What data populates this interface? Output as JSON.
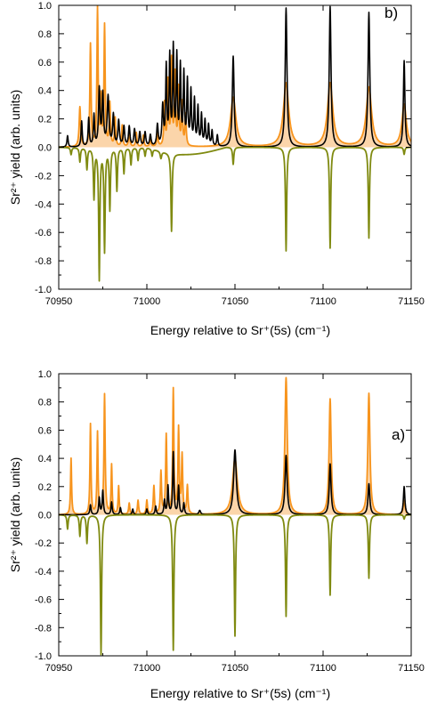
{
  "chart_data": [
    {
      "type": "line",
      "panel_label": "b)",
      "xlabel": "Energy relative to Sr⁺(5s)  (cm⁻¹)",
      "ylabel": "Sr²⁺ yield (arb. units)",
      "xlim": [
        70950,
        71150
      ],
      "ylim": [
        -1.0,
        1.0
      ],
      "xticks": [
        70950,
        71000,
        71050,
        71100,
        71150
      ],
      "yticks": [
        -1.0,
        -0.8,
        -0.6,
        -0.4,
        -0.2,
        0.0,
        0.2,
        0.4,
        0.6,
        0.8,
        1.0
      ],
      "ytick_labels": [
        "-1.0",
        "-0.8",
        "-0.6",
        "-0.4",
        "-0.2",
        "0.0",
        "0.2",
        "0.4",
        "0.6",
        "0.8",
        "1.0"
      ],
      "xtick_labels": [
        "70950",
        "71000",
        "71050",
        "71100",
        "71150"
      ],
      "grid": false,
      "series": [
        {
          "color": "#f7941d",
          "fill": "#f9c78e",
          "peaks": [
            [
              70962,
              0.28,
              0.5
            ],
            [
              70968,
              0.72,
              0.4
            ],
            [
              70972,
              0.97,
              0.4
            ],
            [
              70974,
              0.32,
              0.3
            ],
            [
              70976,
              0.85,
              0.4
            ],
            [
              70979,
              0.3,
              0.4
            ],
            [
              70982,
              0.2,
              0.4
            ],
            [
              70986,
              0.15,
              0.4
            ],
            [
              70990,
              0.12,
              0.4
            ],
            [
              70994,
              0.1,
              0.4
            ],
            [
              70998,
              0.08,
              0.4
            ],
            [
              71002,
              0.06,
              0.4
            ],
            [
              71006,
              0.1,
              0.4
            ],
            [
              71010,
              0.3,
              0.4
            ],
            [
              71012,
              0.45,
              0.4
            ],
            [
              71014,
              0.6,
              0.4
            ],
            [
              71016,
              0.5,
              0.4
            ],
            [
              71018,
              0.4,
              0.4
            ],
            [
              71020,
              0.3,
              0.4
            ],
            [
              71022,
              0.22,
              0.4
            ],
            [
              71049,
              0.35,
              1.8
            ],
            [
              71079,
              0.45,
              1.8
            ],
            [
              71104,
              0.45,
              1.8
            ],
            [
              71126,
              0.42,
              1.8
            ],
            [
              71146,
              0.3,
              1.5
            ]
          ]
        },
        {
          "color": "#000000",
          "peaks": [
            [
              70955,
              0.08,
              0.4
            ],
            [
              70963,
              0.18,
              0.4
            ],
            [
              70967,
              0.2,
              0.4
            ],
            [
              70970,
              0.22,
              0.4
            ],
            [
              70973,
              0.4,
              0.5
            ],
            [
              70975,
              0.36,
              0.5
            ],
            [
              70978,
              0.35,
              0.6
            ],
            [
              70981,
              0.22,
              0.5
            ],
            [
              70984,
              0.18,
              0.5
            ],
            [
              70987,
              0.14,
              0.5
            ],
            [
              70990,
              0.14,
              0.5
            ],
            [
              70993,
              0.12,
              0.5
            ],
            [
              70996,
              0.1,
              0.5
            ],
            [
              70999,
              0.1,
              0.5
            ],
            [
              71002,
              0.08,
              0.5
            ],
            [
              71006,
              0.15,
              0.5
            ],
            [
              71009,
              0.28,
              0.5
            ],
            [
              71011,
              0.55,
              0.4
            ],
            [
              71013,
              0.62,
              0.4
            ],
            [
              71015,
              0.68,
              0.4
            ],
            [
              71017,
              0.62,
              0.4
            ],
            [
              71019,
              0.55,
              0.4
            ],
            [
              71021,
              0.5,
              0.4
            ],
            [
              71023,
              0.45,
              0.4
            ],
            [
              71025,
              0.38,
              0.4
            ],
            [
              71027,
              0.32,
              0.4
            ],
            [
              71029,
              0.27,
              0.4
            ],
            [
              71031,
              0.22,
              0.4
            ],
            [
              71033,
              0.18,
              0.4
            ],
            [
              71035,
              0.15,
              0.4
            ],
            [
              71037,
              0.11,
              0.4
            ],
            [
              71040,
              0.08,
              0.4
            ],
            [
              71049,
              0.64,
              0.6
            ],
            [
              71079,
              0.98,
              0.6
            ],
            [
              71104,
              0.99,
              0.6
            ],
            [
              71126,
              0.95,
              0.6
            ],
            [
              71146,
              0.61,
              0.5
            ]
          ]
        },
        {
          "color": "#7f8a10",
          "peaks": [
            [
              70957,
              -0.05,
              0.4
            ],
            [
              70962,
              -0.1,
              0.4
            ],
            [
              70966,
              -0.15,
              0.4
            ],
            [
              70970,
              -0.35,
              0.4
            ],
            [
              70973,
              -0.92,
              0.4
            ],
            [
              70976,
              -0.72,
              0.4
            ],
            [
              70979,
              -0.43,
              0.4
            ],
            [
              70983,
              -0.3,
              0.4
            ],
            [
              70987,
              -0.18,
              0.4
            ],
            [
              70991,
              -0.12,
              0.4
            ],
            [
              70995,
              -0.09,
              0.4
            ],
            [
              70999,
              -0.06,
              0.4
            ],
            [
              71003,
              -0.05,
              0.4
            ],
            [
              71008,
              -0.05,
              0.5
            ],
            [
              71014,
              -0.55,
              0.4
            ],
            [
              71049,
              -0.12,
              0.4
            ],
            [
              71079,
              -0.73,
              0.4
            ],
            [
              71104,
              -0.71,
              0.4
            ],
            [
              71126,
              -0.64,
              0.4
            ],
            [
              71146,
              -0.05,
              0.4
            ]
          ],
          "baseline_dip": [
            71000,
            71045,
            -0.05
          ]
        }
      ]
    },
    {
      "type": "line",
      "panel_label": "a)",
      "xlabel": "Energy relative to Sr⁺(5s)  (cm⁻¹)",
      "ylabel": "Sr²⁺ yield (arb. units)",
      "xlim": [
        70950,
        71150
      ],
      "ylim": [
        -1.0,
        1.0
      ],
      "xticks": [
        70950,
        71000,
        71050,
        71100,
        71150
      ],
      "yticks": [
        -1.0,
        -0.8,
        -0.6,
        -0.4,
        -0.2,
        0.0,
        0.2,
        0.4,
        0.6,
        0.8,
        1.0
      ],
      "ytick_labels": [
        "-1.0",
        "-0.8",
        "-0.6",
        "-0.4",
        "-0.2",
        "0.0",
        "0.2",
        "0.4",
        "0.6",
        "0.8",
        "1.0"
      ],
      "xtick_labels": [
        "70950",
        "71000",
        "71050",
        "71100",
        "71150"
      ],
      "grid": false,
      "series": [
        {
          "color": "#f7941d",
          "fill": "#f9c78e",
          "peaks": [
            [
              70957,
              0.4,
              0.35
            ],
            [
              70968,
              0.64,
              0.35
            ],
            [
              70972,
              0.58,
              0.35
            ],
            [
              70976,
              0.85,
              0.4
            ],
            [
              70980,
              0.35,
              0.35
            ],
            [
              70984,
              0.2,
              0.35
            ],
            [
              70990,
              0.08,
              0.4
            ],
            [
              70995,
              0.1,
              0.4
            ],
            [
              71000,
              0.1,
              0.4
            ],
            [
              71004,
              0.2,
              0.4
            ],
            [
              71008,
              0.3,
              0.4
            ],
            [
              71011,
              0.56,
              0.4
            ],
            [
              71015,
              0.88,
              0.4
            ],
            [
              71018,
              0.6,
              0.4
            ],
            [
              71020,
              0.41,
              0.4
            ],
            [
              71023,
              0.2,
              0.4
            ],
            [
              71050,
              0.4,
              1.6
            ],
            [
              71079,
              0.97,
              0.8
            ],
            [
              71104,
              0.82,
              0.7
            ],
            [
              71126,
              0.86,
              0.7
            ],
            [
              71146,
              0.1,
              0.6
            ]
          ]
        },
        {
          "color": "#000000",
          "peaks": [
            [
              70968,
              0.07,
              0.4
            ],
            [
              70973,
              0.12,
              0.4
            ],
            [
              70975,
              0.17,
              0.4
            ],
            [
              70980,
              0.09,
              0.4
            ],
            [
              70985,
              0.05,
              0.4
            ],
            [
              70992,
              0.04,
              0.4
            ],
            [
              71000,
              0.04,
              0.4
            ],
            [
              71005,
              0.06,
              0.4
            ],
            [
              71010,
              0.1,
              0.4
            ],
            [
              71012,
              0.2,
              0.4
            ],
            [
              71015,
              0.44,
              0.4
            ],
            [
              71018,
              0.2,
              0.4
            ],
            [
              71021,
              0.08,
              0.4
            ],
            [
              71030,
              0.03,
              0.6
            ],
            [
              71050,
              0.46,
              0.9
            ],
            [
              71079,
              0.42,
              0.7
            ],
            [
              71104,
              0.36,
              0.6
            ],
            [
              71126,
              0.22,
              0.6
            ],
            [
              71146,
              0.2,
              0.5
            ]
          ]
        },
        {
          "color": "#7f8a10",
          "peaks": [
            [
              70955,
              -0.1,
              0.4
            ],
            [
              70962,
              -0.15,
              0.4
            ],
            [
              70966,
              -0.2,
              0.4
            ],
            [
              70974,
              -0.99,
              0.4
            ],
            [
              71015,
              -0.96,
              0.4
            ],
            [
              71050,
              -0.86,
              0.4
            ],
            [
              71079,
              -0.72,
              0.4
            ],
            [
              71104,
              -0.57,
              0.4
            ],
            [
              71126,
              -0.45,
              0.4
            ],
            [
              71146,
              -0.03,
              0.4
            ]
          ]
        }
      ]
    }
  ]
}
